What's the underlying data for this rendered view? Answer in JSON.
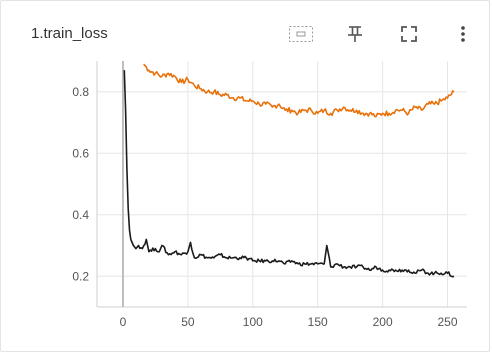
{
  "card": {
    "title": "1.train_loss",
    "toolbar": [
      {
        "icon": "fit-domain-icon"
      },
      {
        "icon": "pin-icon"
      },
      {
        "icon": "fullscreen-icon"
      },
      {
        "icon": "more-vert-icon"
      }
    ]
  },
  "chart_data": {
    "type": "line",
    "xlim": [
      -20,
      265
    ],
    "ylim": [
      0.1,
      0.9
    ],
    "xticks": [
      0,
      50,
      100,
      150,
      200,
      250
    ],
    "yticks": [
      0.2,
      0.4,
      0.6,
      0.8
    ],
    "xtick_labels": [
      "0",
      "50",
      "100",
      "150",
      "200",
      "250"
    ],
    "ytick_labels": [
      "0.2",
      "0.4",
      "0.6",
      "0.8"
    ],
    "grid": true,
    "series": [
      {
        "color": "#e8710a",
        "x": [
          16,
          20,
          25,
          30,
          35,
          40,
          45,
          50,
          55,
          60,
          65,
          70,
          75,
          80,
          85,
          90,
          95,
          100,
          105,
          110,
          115,
          120,
          125,
          130,
          135,
          140,
          145,
          150,
          155,
          160,
          165,
          170,
          175,
          180,
          185,
          190,
          195,
          200,
          205,
          210,
          215,
          220,
          225,
          230,
          235,
          240,
          245,
          250,
          255
        ],
        "y": [
          0.89,
          0.87,
          0.86,
          0.85,
          0.86,
          0.85,
          0.83,
          0.84,
          0.82,
          0.81,
          0.8,
          0.8,
          0.79,
          0.79,
          0.78,
          0.78,
          0.77,
          0.77,
          0.76,
          0.76,
          0.75,
          0.76,
          0.74,
          0.74,
          0.73,
          0.74,
          0.74,
          0.73,
          0.74,
          0.73,
          0.74,
          0.75,
          0.74,
          0.74,
          0.73,
          0.73,
          0.72,
          0.73,
          0.73,
          0.74,
          0.74,
          0.73,
          0.75,
          0.74,
          0.76,
          0.76,
          0.77,
          0.78,
          0.8
        ]
      },
      {
        "color": "#1b1b1b",
        "x": [
          1,
          2,
          3,
          4,
          5,
          6,
          8,
          10,
          12,
          15,
          18,
          20,
          25,
          28,
          30,
          35,
          40,
          45,
          50,
          52,
          55,
          60,
          65,
          70,
          75,
          80,
          85,
          90,
          95,
          100,
          105,
          110,
          115,
          120,
          125,
          130,
          135,
          140,
          145,
          150,
          155,
          157,
          160,
          165,
          170,
          175,
          180,
          185,
          190,
          195,
          200,
          205,
          210,
          215,
          220,
          225,
          230,
          235,
          240,
          245,
          250,
          255
        ],
        "y": [
          0.87,
          0.74,
          0.55,
          0.42,
          0.35,
          0.32,
          0.3,
          0.29,
          0.3,
          0.29,
          0.32,
          0.28,
          0.29,
          0.28,
          0.3,
          0.27,
          0.28,
          0.27,
          0.28,
          0.31,
          0.26,
          0.27,
          0.26,
          0.26,
          0.27,
          0.26,
          0.26,
          0.26,
          0.26,
          0.25,
          0.25,
          0.25,
          0.25,
          0.25,
          0.24,
          0.25,
          0.24,
          0.24,
          0.24,
          0.24,
          0.24,
          0.3,
          0.23,
          0.24,
          0.23,
          0.23,
          0.23,
          0.23,
          0.22,
          0.23,
          0.22,
          0.22,
          0.22,
          0.22,
          0.22,
          0.21,
          0.22,
          0.21,
          0.21,
          0.21,
          0.21,
          0.2
        ]
      }
    ]
  }
}
